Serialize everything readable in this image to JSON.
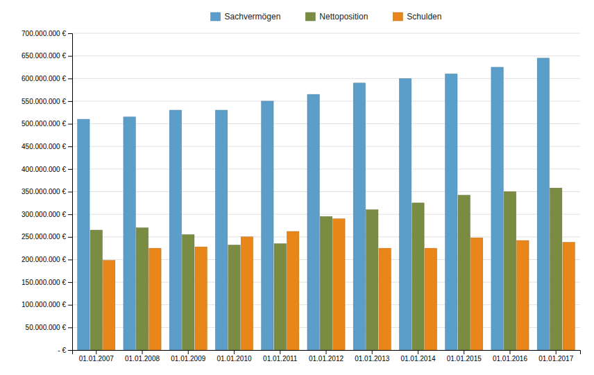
{
  "chart_data": {
    "type": "bar",
    "categories": [
      "01.01.2007",
      "01.01.2008",
      "01.01.2009",
      "01.01.2010",
      "01.01.2011",
      "01.01.2012",
      "01.01.2013",
      "01.01.2014",
      "01.01.2015",
      "01.01.2016",
      "01.01.2017"
    ],
    "series": [
      {
        "name": "Sachvermögen",
        "color": "#5a9ec9",
        "values": [
          510000000,
          515000000,
          530000000,
          530000000,
          550000000,
          565000000,
          590000000,
          600000000,
          610000000,
          625000000,
          645000000
        ]
      },
      {
        "name": "Nettoposition",
        "color": "#7a8c42",
        "values": [
          265000000,
          270000000,
          255000000,
          232000000,
          235000000,
          295000000,
          310000000,
          325000000,
          342000000,
          350000000,
          358000000
        ]
      },
      {
        "name": "Schulden",
        "color": "#e8861a",
        "values": [
          198000000,
          225000000,
          228000000,
          250000000,
          262000000,
          290000000,
          225000000,
          225000000,
          248000000,
          242000000,
          238000000
        ]
      }
    ],
    "ylim": [
      0,
      700000000
    ],
    "yticks": [
      {
        "value": 0,
        "label": "- €"
      },
      {
        "value": 50000000,
        "label": "50.000.000 €"
      },
      {
        "value": 100000000,
        "label": "100.000.000 €"
      },
      {
        "value": 150000000,
        "label": "150.000.000 €"
      },
      {
        "value": 200000000,
        "label": "200.000.000 €"
      },
      {
        "value": 250000000,
        "label": "250.000.000 €"
      },
      {
        "value": 300000000,
        "label": "300.000.000 €"
      },
      {
        "value": 350000000,
        "label": "350.000.000 €"
      },
      {
        "value": 400000000,
        "label": "400.000.000 €"
      },
      {
        "value": 450000000,
        "label": "450.000.000 €"
      },
      {
        "value": 500000000,
        "label": "500.000.000 €"
      },
      {
        "value": 550000000,
        "label": "550.000.000 €"
      },
      {
        "value": 600000000,
        "label": "600.000.000 €"
      },
      {
        "value": 650000000,
        "label": "650.000.000 €"
      },
      {
        "value": 700000000,
        "label": "700.000.000 €"
      }
    ],
    "grid": true,
    "legend": "top"
  }
}
